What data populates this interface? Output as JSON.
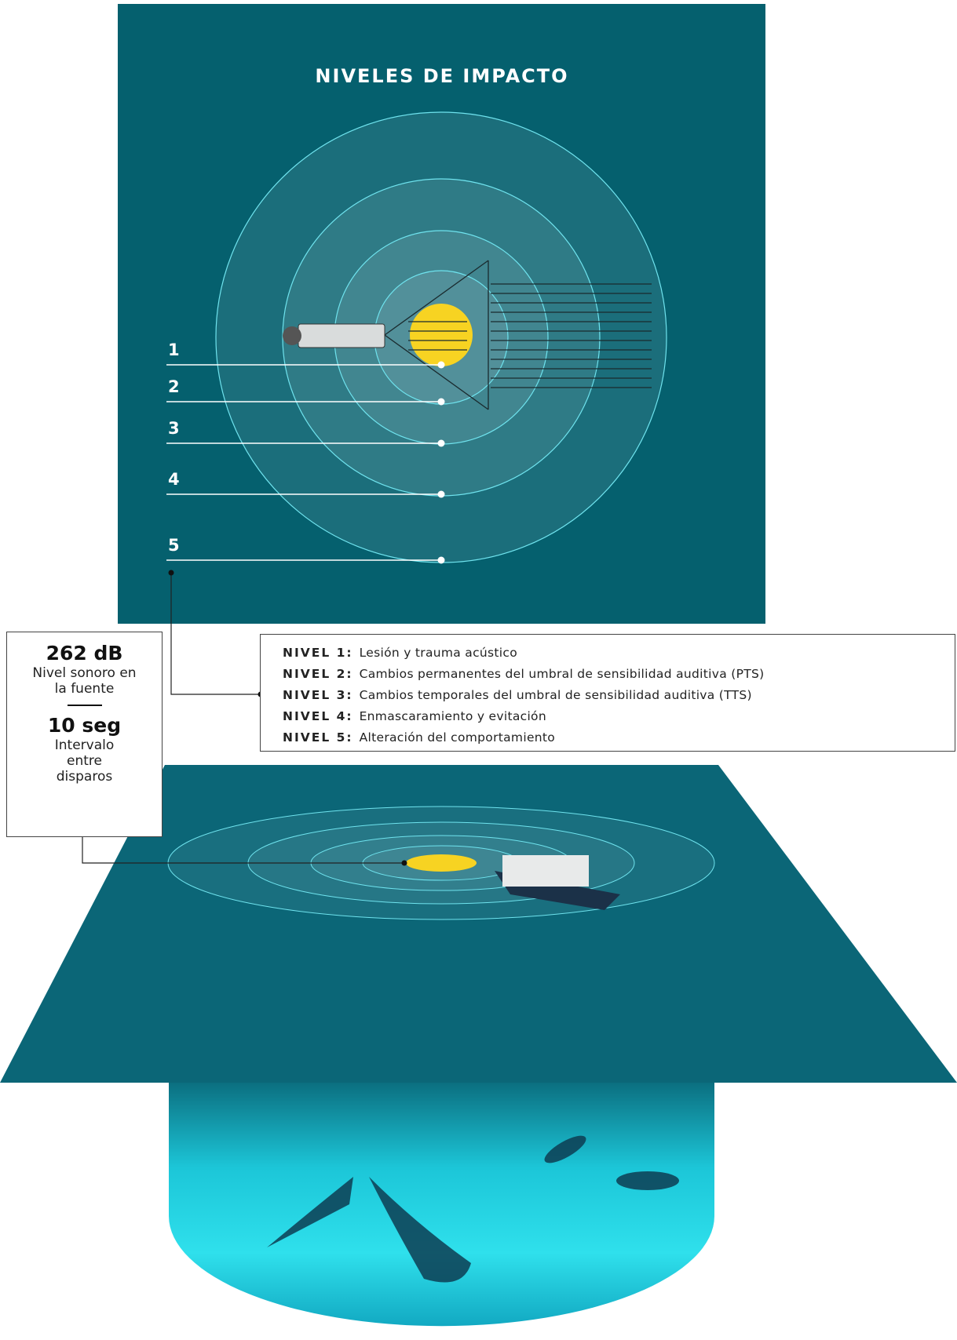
{
  "header": {
    "title": "NIVELES DE IMPACTO"
  },
  "levels": [
    "1",
    "2",
    "3",
    "4",
    "5"
  ],
  "legend": [
    {
      "label": "NIVEL 1:",
      "text": "Lesión y trauma acústico"
    },
    {
      "label": "NIVEL 2:",
      "text": "Cambios permanentes del umbral de sensibilidad auditiva (PTS)"
    },
    {
      "label": "NIVEL 3:",
      "text": "Cambios temporales del umbral de sensibilidad auditiva (TTS)"
    },
    {
      "label": "NIVEL 4:",
      "text": "Enmascaramiento y evitación"
    },
    {
      "label": "NIVEL 5:",
      "text": "Alteración del comportamiento"
    }
  ],
  "stats": [
    {
      "value": "262 dB",
      "label": "Nivel sonoro en la fuente"
    },
    {
      "value": "10 seg",
      "label": "Intervalo entre disparos"
    }
  ]
}
